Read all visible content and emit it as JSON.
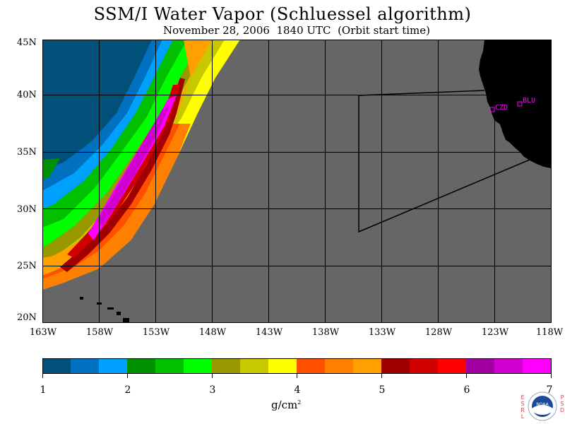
{
  "title": "SSM/I Water Vapor (Schluessel algorithm)",
  "subtitle": "November 28, 2006  1840 UTC  (Orbit start time)",
  "map": {
    "lat_labels": [
      "45N",
      "40N",
      "35N",
      "30N",
      "25N",
      "20N"
    ],
    "lon_labels": [
      "163W",
      "158W",
      "153W",
      "148W",
      "143W",
      "138W",
      "133W",
      "128W",
      "123W",
      "118W"
    ],
    "lat_range": [
      20,
      45
    ],
    "lon_range": [
      -163,
      -118
    ],
    "missing_data_color": "#666666",
    "land_color": "#000000",
    "stations": [
      {
        "id": "CZD",
        "lon": -123.0,
        "lat": 38.7
      },
      {
        "id": "BLU",
        "lon": -120.7,
        "lat": 39.3
      }
    ]
  },
  "colorbar": {
    "min": 1,
    "max": 7,
    "tick_labels": [
      "1",
      "2",
      "3",
      "4",
      "5",
      "6",
      "7"
    ],
    "units_base": "g/cm",
    "units_exp": "2",
    "colors": [
      "#00507a",
      "#0070c0",
      "#00a0ff",
      "#009000",
      "#00c000",
      "#00ff00",
      "#989800",
      "#c8c800",
      "#ffff00",
      "#ff5000",
      "#ff8000",
      "#ffa000",
      "#a00000",
      "#d00000",
      "#ff0000",
      "#a000a0",
      "#d000d0",
      "#ff00ff"
    ]
  },
  "logo": {
    "text": "NOAA",
    "left_vertical": "ESRL",
    "right_vertical": "PSD"
  }
}
